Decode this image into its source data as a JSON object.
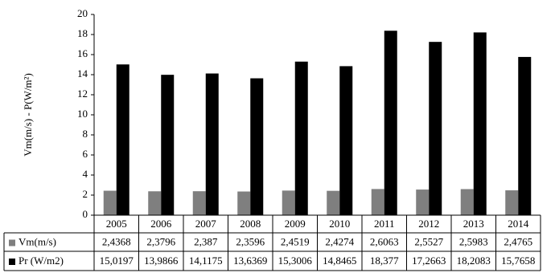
{
  "chart_data": {
    "type": "bar",
    "ylabel": "Vm(m/s) - P(W/m²)",
    "categories": [
      "2005",
      "2006",
      "2007",
      "2008",
      "2009",
      "2010",
      "2011",
      "2012",
      "2013",
      "2014"
    ],
    "series": [
      {
        "name": "Vm(m/s)",
        "color": "#7f7f7f",
        "values": [
          2.4368,
          2.3796,
          2.387,
          2.3596,
          2.4519,
          2.4274,
          2.6063,
          2.5527,
          2.5983,
          2.4765
        ],
        "value_labels": [
          "2,4368",
          "2,3796",
          "2,387",
          "2,3596",
          "2,4519",
          "2,4274",
          "2,6063",
          "2,5527",
          "2,5983",
          "2,4765"
        ]
      },
      {
        "name": "Pr (W/m2)",
        "color": "#000000",
        "values": [
          15.0197,
          13.9866,
          14.1175,
          13.6369,
          15.3006,
          14.8465,
          18.377,
          17.2663,
          18.2083,
          15.7658
        ],
        "value_labels": [
          "15,0197",
          "13,9866",
          "14,1175",
          "13,6369",
          "15,3006",
          "14,8465",
          "18,377",
          "17,2663",
          "18,2083",
          "15,7658"
        ]
      }
    ],
    "ylim": [
      0,
      20
    ],
    "yticks": [
      0,
      2,
      4,
      6,
      8,
      10,
      12,
      14,
      16,
      18,
      20
    ],
    "grid": false
  }
}
